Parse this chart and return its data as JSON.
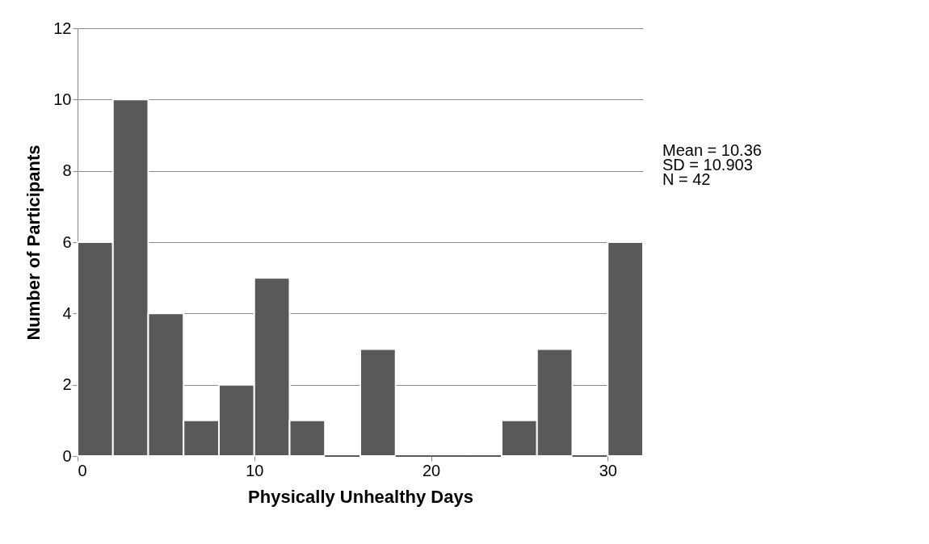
{
  "chart_data": {
    "type": "histogram",
    "xlabel": "Physically Unhealthy Days",
    "ylabel": "Number of Participants",
    "bins": [
      0,
      2,
      4,
      6,
      8,
      10,
      12,
      14,
      16,
      18,
      20,
      22,
      24,
      26,
      28,
      30,
      32
    ],
    "values": [
      6,
      10,
      4,
      1,
      2,
      5,
      1,
      0,
      3,
      0,
      0,
      0,
      1,
      3,
      0,
      6
    ],
    "color": "#595959",
    "xlim": [
      0,
      32
    ],
    "xticks": [
      0,
      10,
      20,
      30
    ],
    "ylim": [
      0,
      12
    ],
    "yticks": [
      0,
      2,
      4,
      6,
      8,
      10,
      12
    ],
    "grid": "y",
    "annotations": [
      "Mean = 10.36",
      "SD = 10.903",
      "N = 42"
    ]
  }
}
